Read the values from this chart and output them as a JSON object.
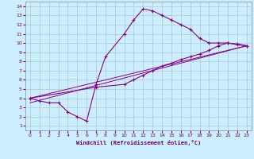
{
  "xlabel": "Windchill (Refroidissement éolien,°C)",
  "xlim": [
    -0.5,
    23.5
  ],
  "ylim": [
    0.5,
    14.5
  ],
  "xticks": [
    0,
    1,
    2,
    3,
    4,
    5,
    6,
    7,
    8,
    9,
    10,
    11,
    12,
    13,
    14,
    15,
    16,
    17,
    18,
    19,
    20,
    21,
    22,
    23
  ],
  "yticks": [
    1,
    2,
    3,
    4,
    5,
    6,
    7,
    8,
    9,
    10,
    11,
    12,
    13,
    14
  ],
  "bg_color": "#cceeff",
  "line_color": "#880088",
  "grid_color": "#aacccc",
  "line1_x": [
    0,
    1,
    2,
    3,
    4,
    5,
    6,
    7,
    8,
    10,
    11,
    12,
    13,
    14,
    15,
    16,
    17,
    18,
    19,
    20,
    21,
    22,
    23
  ],
  "line1_y": [
    4,
    3.7,
    3.5,
    3.5,
    2.5,
    2.0,
    1.5,
    5.5,
    8.5,
    11.0,
    12.5,
    13.7,
    13.5,
    13.0,
    12.5,
    12.0,
    11.5,
    10.5,
    10.0,
    10.0,
    10.0,
    9.8,
    9.7
  ],
  "line2_x": [
    0,
    7,
    10,
    11,
    12,
    13,
    14,
    15,
    16,
    17,
    18,
    19,
    20,
    21,
    22,
    23
  ],
  "line2_y": [
    4,
    5.2,
    5.5,
    6.0,
    6.5,
    7.0,
    7.5,
    7.8,
    8.2,
    8.5,
    8.8,
    9.2,
    9.7,
    10.0,
    9.9,
    9.7
  ],
  "line3_x": [
    0,
    23
  ],
  "line3_y": [
    4.0,
    9.7
  ],
  "line4_x": [
    0,
    23
  ],
  "line4_y": [
    3.5,
    9.7
  ]
}
